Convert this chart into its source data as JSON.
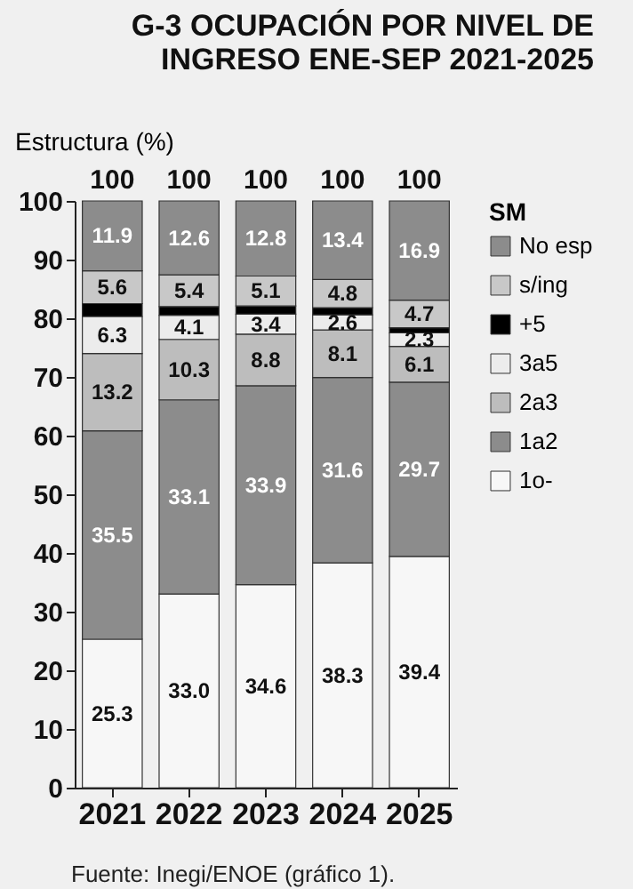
{
  "chart_data": {
    "type": "bar",
    "title": "G-3 OCUPACIÓN POR NIVEL DE INGRESO ENE-SEP 2021-2025",
    "ylabel": "Estructura (%)",
    "legend_title": "SM",
    "categories": [
      "2021",
      "2022",
      "2023",
      "2024",
      "2025"
    ],
    "stacked": true,
    "ylim": [
      0,
      100
    ],
    "yticks": [
      0,
      10,
      20,
      30,
      40,
      50,
      60,
      70,
      80,
      90,
      100
    ],
    "grid": false,
    "legend": "right",
    "series": [
      {
        "name": "1o-",
        "color": "#f7f7f7",
        "values": [
          25.3,
          33.0,
          34.6,
          38.3,
          39.4
        ],
        "value_labels": [
          "25.3",
          "33.0",
          "34.6",
          "38.3",
          "39.4"
        ]
      },
      {
        "name": "1a2",
        "color": "#8c8c8c",
        "values": [
          35.5,
          33.1,
          33.9,
          31.6,
          29.7
        ],
        "value_labels": [
          "35.5",
          "33.1",
          "33.9",
          "31.6",
          "29.7"
        ]
      },
      {
        "name": "2a3",
        "color": "#bdbdbd",
        "values": [
          13.2,
          10.3,
          8.8,
          8.1,
          6.1
        ],
        "value_labels": [
          "13.2",
          "10.3",
          "8.8",
          "8.1",
          "6.1"
        ]
      },
      {
        "name": "3a5",
        "color": "#ececec",
        "values": [
          6.3,
          4.1,
          3.4,
          2.6,
          2.3
        ],
        "value_labels": [
          "6.3",
          "4.1",
          "3.4",
          "2.6",
          "2.3"
        ]
      },
      {
        "name": "+5",
        "color": "#000000",
        "values": [
          2.2,
          1.5,
          1.4,
          1.2,
          0.9
        ],
        "value_labels": [
          null,
          null,
          null,
          null,
          null
        ]
      },
      {
        "name": "s/ing",
        "color": "#c8c8c8",
        "values": [
          5.6,
          5.4,
          5.1,
          4.8,
          4.7
        ],
        "value_labels": [
          "5.6",
          "5.4",
          "5.1",
          "4.8",
          "4.7"
        ]
      },
      {
        "name": "No esp",
        "color": "#8c8c8c",
        "values": [
          11.9,
          12.6,
          12.8,
          13.4,
          16.9
        ],
        "value_labels": [
          "11.9",
          "12.6",
          "12.8",
          "13.4",
          "16.9"
        ]
      }
    ],
    "totals": [
      "100",
      "100",
      "100",
      "100",
      "100"
    ],
    "annotations": [
      "Fuente: Inegi/ENOE (gráfico 1)."
    ]
  }
}
